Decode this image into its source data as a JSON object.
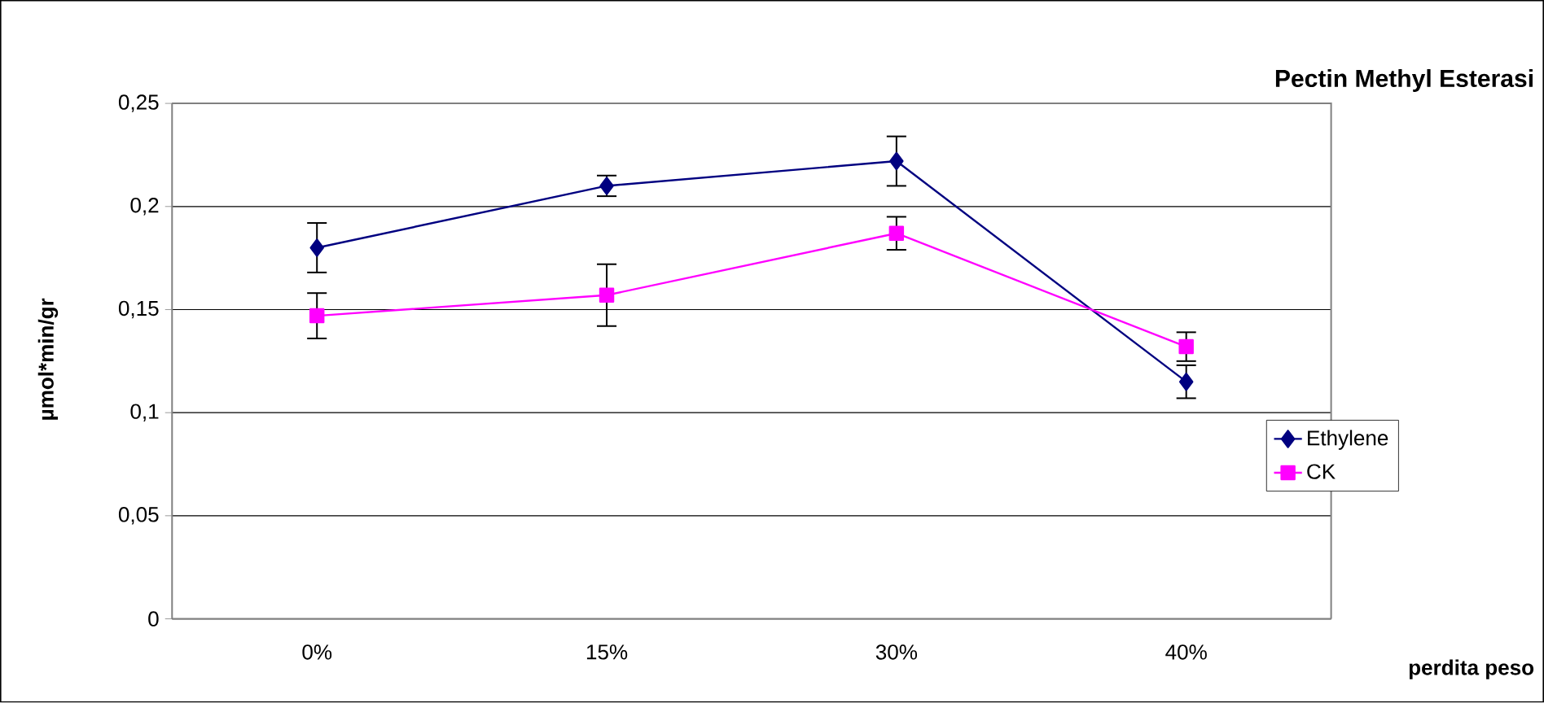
{
  "chart_data": {
    "type": "line",
    "title": "Pectin Methyl Esterasi",
    "xlabel": "perdita peso",
    "ylabel": "µmol*min/gr",
    "categories": [
      "0%",
      "15%",
      "30%",
      "40%"
    ],
    "series": [
      {
        "name": "Ethylene",
        "color": "#000080",
        "marker": "diamond",
        "values": [
          0.18,
          0.21,
          0.222,
          0.115
        ],
        "errors": [
          0.012,
          0.005,
          0.012,
          0.008
        ]
      },
      {
        "name": "CK",
        "color": "#ff00ff",
        "marker": "square",
        "values": [
          0.147,
          0.157,
          0.187,
          0.132
        ],
        "errors": [
          0.011,
          0.015,
          0.008,
          0.007
        ]
      }
    ],
    "ylim": [
      0,
      0.25
    ],
    "yticks": [
      {
        "value": 0,
        "label": "0"
      },
      {
        "value": 0.05,
        "label": "0,05"
      },
      {
        "value": 0.1,
        "label": "0,1"
      },
      {
        "value": 0.15,
        "label": "0,15"
      },
      {
        "value": 0.2,
        "label": "0,2"
      },
      {
        "value": 0.25,
        "label": "0,25"
      }
    ],
    "grid": "y",
    "legend": "right",
    "line_style": "solid"
  }
}
